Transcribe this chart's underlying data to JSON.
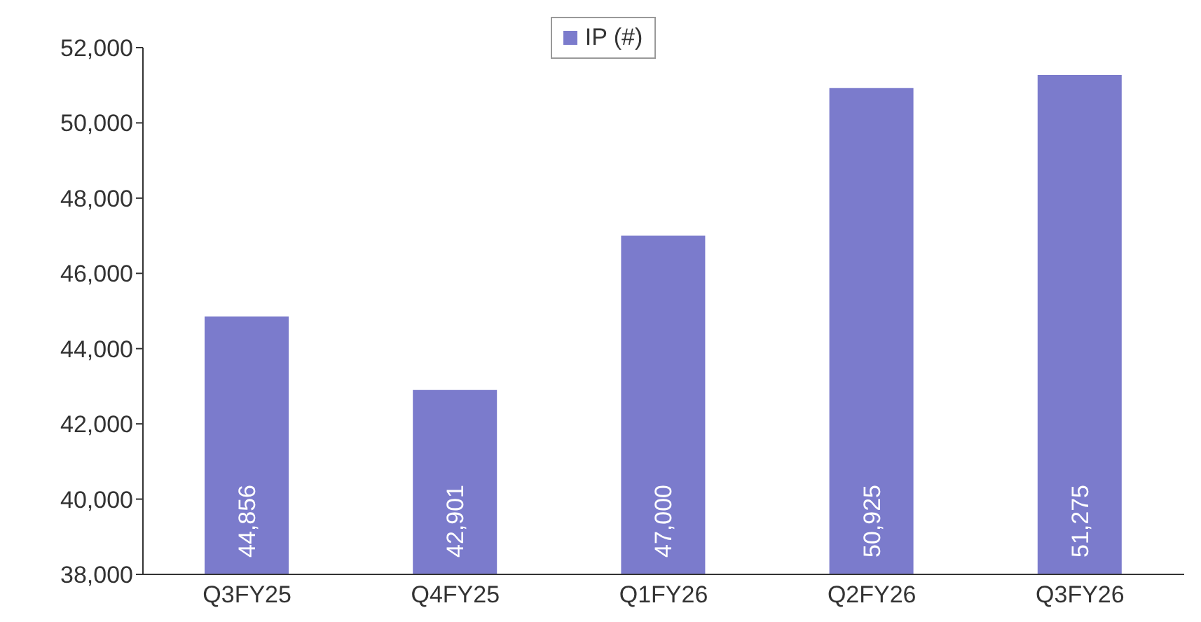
{
  "chart_data": {
    "type": "bar",
    "categories": [
      "Q3FY25",
      "Q4FY25",
      "Q1FY26",
      "Q2FY26",
      "Q3FY26"
    ],
    "series": [
      {
        "name": "IP (#)",
        "color": "#7b7bcc",
        "values": [
          44856,
          42901,
          47000,
          50925,
          51275
        ],
        "value_labels": [
          "44,856",
          "42,901",
          "47,000",
          "50,925",
          "51,275"
        ]
      }
    ],
    "ylim": [
      38000,
      52000
    ],
    "yticks": [
      {
        "value": 38000,
        "label": "38,000"
      },
      {
        "value": 40000,
        "label": "40,000"
      },
      {
        "value": 42000,
        "label": "42,000"
      },
      {
        "value": 44000,
        "label": "44,000"
      },
      {
        "value": 46000,
        "label": "46,000"
      },
      {
        "value": 48000,
        "label": "48,000"
      },
      {
        "value": 50000,
        "label": "50,000"
      },
      {
        "value": 52000,
        "label": "52,000"
      }
    ],
    "grid": false,
    "legend": "top"
  }
}
